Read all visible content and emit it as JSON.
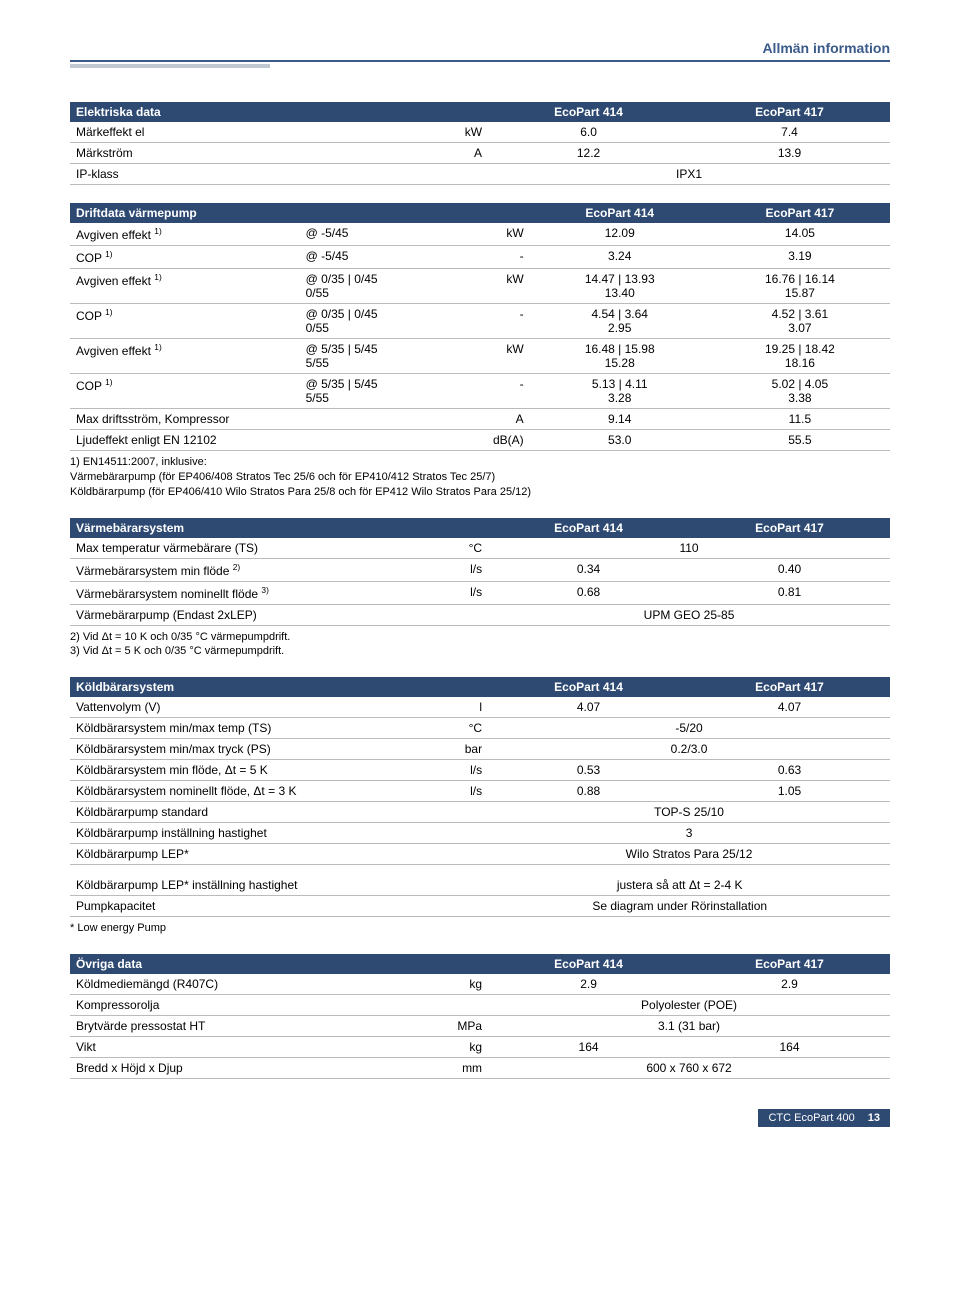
{
  "header": "Allmän information",
  "colors": {
    "brand": "#2e4a72",
    "headerText": "#3a5a8a",
    "rule": "#bbbbbb",
    "accentBar": "#c2c8d0"
  },
  "tables": {
    "electrical": {
      "title": "Elektriska data",
      "c1": "EcoPart 414",
      "c2": "EcoPart 417",
      "rows": [
        {
          "label": "Märkeffekt el",
          "unit": "kW",
          "v1": "6.0",
          "v2": "7.4"
        },
        {
          "label": "Märkström",
          "unit": "A",
          "v1": "12.2",
          "v2": "13.9"
        },
        {
          "label": "IP-klass",
          "unit": "",
          "span": "IPX1"
        }
      ]
    },
    "drift": {
      "title": "Driftdata värmepump",
      "c1": "EcoPart 414",
      "c2": "EcoPart 417",
      "rows": [
        {
          "label": "Avgiven effekt ",
          "sup": "1)",
          "cond": "@ -5/45",
          "unit": "kW",
          "v1": "12.09",
          "v2": "14.05"
        },
        {
          "label": "COP ",
          "sup": "1)",
          "cond": "@ -5/45",
          "unit": "-",
          "v1": "3.24",
          "v2": "3.19"
        },
        {
          "label": "Avgiven effekt ",
          "sup": "1)",
          "cond": "@ 0/35 | 0/45\n0/55",
          "unit": "kW",
          "v1": "14.47 | 13.93\n13.40",
          "v2": "16.76 | 16.14\n15.87"
        },
        {
          "label": "COP ",
          "sup": "1)",
          "cond": "@ 0/35 | 0/45\n0/55",
          "unit": "-",
          "v1": "4.54 | 3.64\n2.95",
          "v2": "4.52 | 3.61\n3.07"
        },
        {
          "label": "Avgiven effekt ",
          "sup": "1)",
          "cond": "@ 5/35 | 5/45\n5/55",
          "unit": "kW",
          "v1": "16.48 | 15.98\n15.28",
          "v2": "19.25 | 18.42\n18.16"
        },
        {
          "label": "COP ",
          "sup": "1)",
          "cond": "@ 5/35 | 5/45\n5/55",
          "unit": "-",
          "v1": "5.13 | 4.11\n3.28",
          "v2": "5.02 | 4.05\n3.38"
        },
        {
          "label": "Max driftsström, Kompressor",
          "cond": "",
          "unit": "A",
          "v1": "9.14",
          "v2": "11.5"
        },
        {
          "label": "Ljudeffekt enligt EN 12102",
          "cond": "",
          "unit": "dB(A)",
          "v1": "53.0",
          "v2": "55.5"
        }
      ],
      "footnote": "1) EN14511:2007, inklusive:\n    Värmebärarpump (för EP406/408 Stratos Tec 25/6 och för EP410/412 Stratos Tec 25/7)\n    Köldbärarpump (för EP406/410 Wilo Stratos Para 25/8 och för EP412 Wilo Stratos Para 25/12)"
    },
    "varme": {
      "title": "Värmebärarsystem",
      "c1": "EcoPart 414",
      "c2": "EcoPart 417",
      "rows": [
        {
          "label": "Max temperatur värmebärare (TS)",
          "unit": "°C",
          "span": "110"
        },
        {
          "label": "Värmebärarsystem min flöde ",
          "sup": "2)",
          "unit": "l/s",
          "v1": "0.34",
          "v2": "0.40"
        },
        {
          "label": "Värmebärarsystem nominellt flöde ",
          "sup": "3)",
          "unit": "l/s",
          "v1": "0.68",
          "v2": "0.81"
        },
        {
          "label": "Värmebärarpump (Endast 2xLEP)",
          "unit": "",
          "span": "UPM GEO 25-85"
        }
      ],
      "footnote": "2) Vid Δt = 10 K och 0/35 °C värmepumpdrift.\n3) Vid Δt = 5 K och 0/35 °C värmepumpdrift."
    },
    "kold": {
      "title": "Köldbärarsystem",
      "c1": "EcoPart 414",
      "c2": "EcoPart 417",
      "rows": [
        {
          "label": "Vattenvolym (V)",
          "unit": "l",
          "v1": "4.07",
          "v2": "4.07"
        },
        {
          "label": "Köldbärarsystem min/max temp  (TS)",
          "unit": "°C",
          "span": "-5/20"
        },
        {
          "label": "Köldbärarsystem min/max tryck  (PS)",
          "unit": "bar",
          "span": "0.2/3.0"
        },
        {
          "label": "Köldbärarsystem min flöde, Δt = 5 K",
          "unit": "l/s",
          "v1": "0.53",
          "v2": "0.63"
        },
        {
          "label": "Köldbärarsystem nominellt flöde, Δt = 3 K",
          "unit": "l/s",
          "v1": "0.88",
          "v2": "1.05"
        },
        {
          "label": "Köldbärarpump standard",
          "unit": "",
          "span": "TOP-S 25/10"
        },
        {
          "label": "Köldbärarpump inställning hastighet",
          "unit": "",
          "span": "3"
        },
        {
          "label": "Köldbärarpump LEP*",
          "unit": "",
          "span": "Wilo Stratos Para 25/12"
        }
      ],
      "rows2": [
        {
          "label": "Köldbärarpump LEP* inställning hastighet",
          "unit": "",
          "span": "justera så att Δt = 2-4 K"
        },
        {
          "label": "Pumpkapacitet",
          "unit": "",
          "span": "Se diagram under Rörinstallation"
        }
      ],
      "footnote": "* Low energy Pump"
    },
    "ovriga": {
      "title": "Övriga data",
      "c1": "EcoPart 414",
      "c2": "EcoPart 417",
      "rows": [
        {
          "label": "Köldmediemängd (R407C)",
          "unit": "kg",
          "v1": "2.9",
          "v2": "2.9"
        },
        {
          "label": "Kompressorolja",
          "unit": "",
          "span": "Polyolester (POE)"
        },
        {
          "label": "Brytvärde pressostat HT",
          "unit": "MPa",
          "span": "3.1 (31 bar)"
        },
        {
          "label": "Vikt",
          "unit": "kg",
          "v1": "164",
          "v2": "164"
        },
        {
          "label": "Bredd x Höjd x Djup",
          "unit": "mm",
          "span": "600 x 760 x 672"
        }
      ]
    }
  },
  "footer": {
    "doc": "CTC EcoPart 400",
    "page": "13"
  }
}
